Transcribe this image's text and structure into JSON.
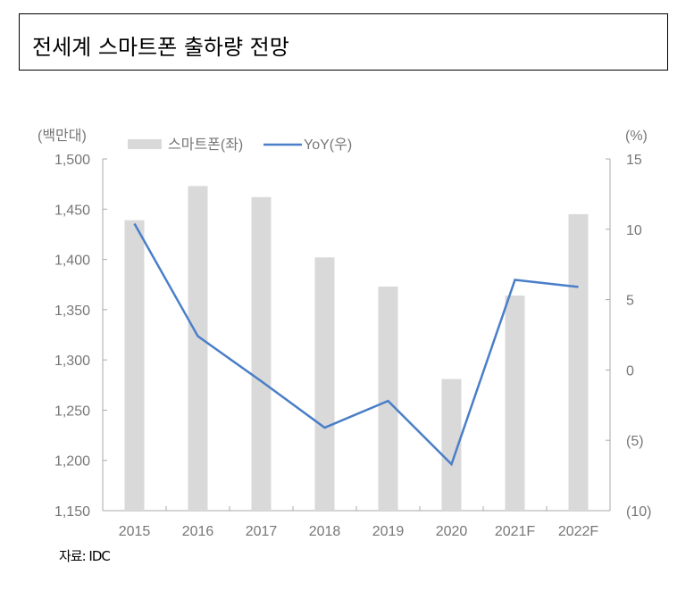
{
  "title": "전세계 스마트폰 출하량 전망",
  "source": "자료: IDC",
  "chart_data": {
    "type": "bar",
    "categories": [
      "2015",
      "2016",
      "2017",
      "2018",
      "2019",
      "2020",
      "2021F",
      "2022F"
    ],
    "series": [
      {
        "name": "스마트폰(좌)",
        "type": "bar",
        "axis": "left",
        "color": "#d9d9d9",
        "values": [
          1439,
          1473,
          1462,
          1402,
          1373,
          1281,
          1364,
          1445
        ]
      },
      {
        "name": "YoY(우)",
        "type": "line",
        "axis": "right",
        "color": "#4a7ec8",
        "values": [
          10.4,
          2.4,
          -0.8,
          -4.1,
          -2.2,
          -6.7,
          6.4,
          5.9
        ]
      }
    ],
    "y_left": {
      "unit_label": "(백만대)",
      "range": [
        1150,
        1500
      ],
      "ticks": [
        "1,150",
        "1,200",
        "1,250",
        "1,300",
        "1,350",
        "1,400",
        "1,450",
        "1,500"
      ]
    },
    "y_right": {
      "unit_label": "(%)",
      "range": [
        -10,
        15
      ],
      "ticks": [
        "(10)",
        "(5)",
        "0",
        "5",
        "10",
        "15"
      ]
    },
    "legend": "top",
    "grid": false
  }
}
